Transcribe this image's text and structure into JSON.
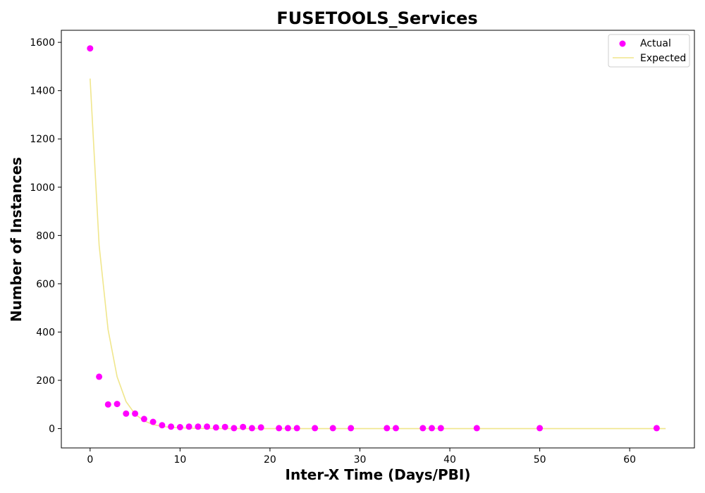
{
  "chart_data": {
    "type": "scatter",
    "title": "FUSETOOLS_Services",
    "xlabel": "Inter-X Time (Days/PBI)",
    "ylabel": "Number of Instances",
    "xlim": [
      -3.2,
      67.2
    ],
    "ylim": [
      -80,
      1650
    ],
    "xticks": [
      0,
      10,
      20,
      30,
      40,
      50,
      60
    ],
    "yticks": [
      0,
      200,
      400,
      600,
      800,
      1000,
      1200,
      1400,
      1600
    ],
    "grid": false,
    "legend_position": "top-right",
    "series": [
      {
        "name": "Actual",
        "kind": "scatter",
        "color": "#ff00ff",
        "points": [
          [
            0,
            1575
          ],
          [
            1,
            215
          ],
          [
            2,
            100
          ],
          [
            3,
            102
          ],
          [
            4,
            62
          ],
          [
            5,
            62
          ],
          [
            6,
            40
          ],
          [
            7,
            28
          ],
          [
            8,
            14
          ],
          [
            9,
            8
          ],
          [
            10,
            6
          ],
          [
            11,
            8
          ],
          [
            12,
            8
          ],
          [
            13,
            8
          ],
          [
            14,
            5
          ],
          [
            15,
            7
          ],
          [
            16,
            2
          ],
          [
            17,
            7
          ],
          [
            18,
            2
          ],
          [
            19,
            5
          ],
          [
            21,
            2
          ],
          [
            22,
            2
          ],
          [
            23,
            2
          ],
          [
            25,
            2
          ],
          [
            27,
            2
          ],
          [
            29,
            2
          ],
          [
            33,
            2
          ],
          [
            34,
            2
          ],
          [
            37,
            2
          ],
          [
            38,
            2
          ],
          [
            39,
            2
          ],
          [
            43,
            2
          ],
          [
            50,
            2
          ],
          [
            63,
            2
          ]
        ]
      },
      {
        "name": "Expected",
        "kind": "line",
        "color": "#f0e68c",
        "points": [
          [
            0,
            1450
          ],
          [
            1,
            760
          ],
          [
            2,
            410
          ],
          [
            3,
            215
          ],
          [
            4,
            112
          ],
          [
            5,
            60
          ],
          [
            6,
            32
          ],
          [
            7,
            17
          ],
          [
            8,
            9
          ],
          [
            9,
            5
          ],
          [
            10,
            3
          ],
          [
            12,
            1
          ],
          [
            15,
            0
          ],
          [
            20,
            0
          ],
          [
            30,
            0
          ],
          [
            40,
            0
          ],
          [
            50,
            0
          ],
          [
            60,
            0
          ],
          [
            64,
            0
          ]
        ]
      }
    ]
  }
}
